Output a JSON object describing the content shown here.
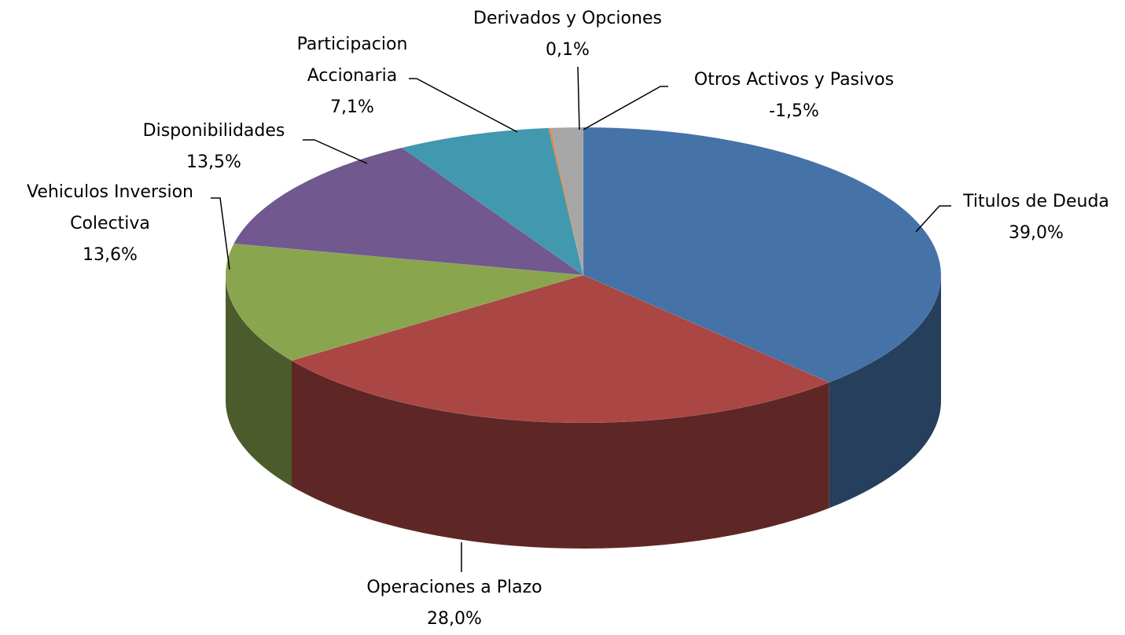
{
  "chart_data": {
    "type": "pie",
    "categories": [
      "Titulos de Deuda",
      "Operaciones a Plazo",
      "Vehiculos Inversion Colectiva",
      "Disponibilidades",
      "Participacion Accionaria",
      "Derivados y Opciones",
      "Otros Activos y Pasivos"
    ],
    "values": [
      39.0,
      28.0,
      13.6,
      13.5,
      7.1,
      0.1,
      -1.5
    ],
    "value_labels": [
      "39,0%",
      "28,0%",
      "13,6%",
      "13,5%",
      "7,1%",
      "0,1%",
      "-1,5%"
    ],
    "colors": [
      "#4572a7",
      "#aa4643",
      "#89a54e",
      "#71588f",
      "#4198af",
      "#db843d",
      "#a6a6a6"
    ]
  }
}
